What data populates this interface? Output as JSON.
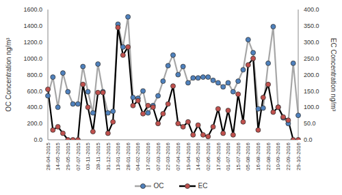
{
  "chart_data": {
    "type": "line",
    "categories": [
      "28-04-2015",
      null,
      "14-05-2015",
      null,
      "29-05-2015",
      null,
      "07-07-2015",
      null,
      "03-11-2015",
      null,
      "28-11-2015",
      null,
      "31-12-2015",
      null,
      "13-01-2016",
      null,
      "28-01-2016",
      null,
      "04-02-2016",
      null,
      "17-02-2016",
      null,
      "07-03-2016",
      null,
      "22-03-2016",
      null,
      "07-04-2016",
      null,
      "19-04-2016",
      null,
      "14-05-2016",
      null,
      "02-06-2016",
      null,
      "17-06-2016",
      null,
      "01-07-2016",
      null,
      "15-07-2016",
      null,
      "05-08-2016",
      null,
      "16-08-2016",
      null,
      "22-08-2016",
      null,
      "10-09-2016",
      null,
      "22-09-2016",
      null,
      "29-10-2016"
    ],
    "y_label": "OC Concentration ng/m³",
    "y2_label": "EC Concentration ng/m³",
    "ylim": [
      0,
      1600
    ],
    "yticks": [
      {
        "value": 0,
        "label": "0.0"
      },
      {
        "value": 200,
        "label": "200.0"
      },
      {
        "value": 400,
        "label": "400.0"
      },
      {
        "value": 600,
        "label": "600.0"
      },
      {
        "value": 800,
        "label": "800.0"
      },
      {
        "value": 1000,
        "label": "1000.0"
      },
      {
        "value": 1200,
        "label": "1200.0"
      },
      {
        "value": 1400,
        "label": "1400.0"
      },
      {
        "value": 1600,
        "label": "1600.0"
      }
    ],
    "y2lim": [
      0,
      400
    ],
    "y2ticks": [
      {
        "value": 0,
        "label": "0.0"
      },
      {
        "value": 50,
        "label": "50.0"
      },
      {
        "value": 100,
        "label": "100.0"
      },
      {
        "value": 150,
        "label": "150.0"
      },
      {
        "value": 200,
        "label": "200.0"
      },
      {
        "value": 250,
        "label": "250.0"
      },
      {
        "value": 300,
        "label": "300.0"
      },
      {
        "value": 350,
        "label": "350.0"
      },
      {
        "value": 400,
        "label": "400.0"
      }
    ],
    "grid": false,
    "legend": "bottom",
    "series": [
      {
        "name": "OC",
        "color": "#a6a6a6",
        "marker": "circle",
        "values": [
          540,
          770,
          400,
          820,
          590,
          440,
          440,
          900,
          590,
          330,
          930,
          590,
          330,
          350,
          1420,
          1140,
          1510,
          520,
          510,
          600,
          330,
          420,
          540,
          720,
          910,
          1040,
          800,
          900,
          700,
          760,
          760,
          770,
          770,
          730,
          700,
          650,
          700,
          590,
          720,
          860,
          1230,
          1070,
          380,
          390,
          940,
          1390,
          400,
          270,
          200,
          940,
          300
        ]
      },
      {
        "name": "EC",
        "color": "#000000",
        "marker": "circle",
        "axis": "y2",
        "values": [
          155,
          30,
          40,
          20,
          0,
          0,
          0,
          170,
          100,
          25,
          145,
          145,
          20,
          55,
          345,
          260,
          285,
          105,
          120,
          80,
          105,
          100,
          50,
          80,
          110,
          165,
          50,
          40,
          55,
          15,
          45,
          15,
          10,
          40,
          95,
          20,
          90,
          15,
          140,
          55,
          230,
          250,
          30,
          130,
          170,
          85,
          100,
          70,
          60,
          0,
          0
        ]
      }
    ]
  }
}
